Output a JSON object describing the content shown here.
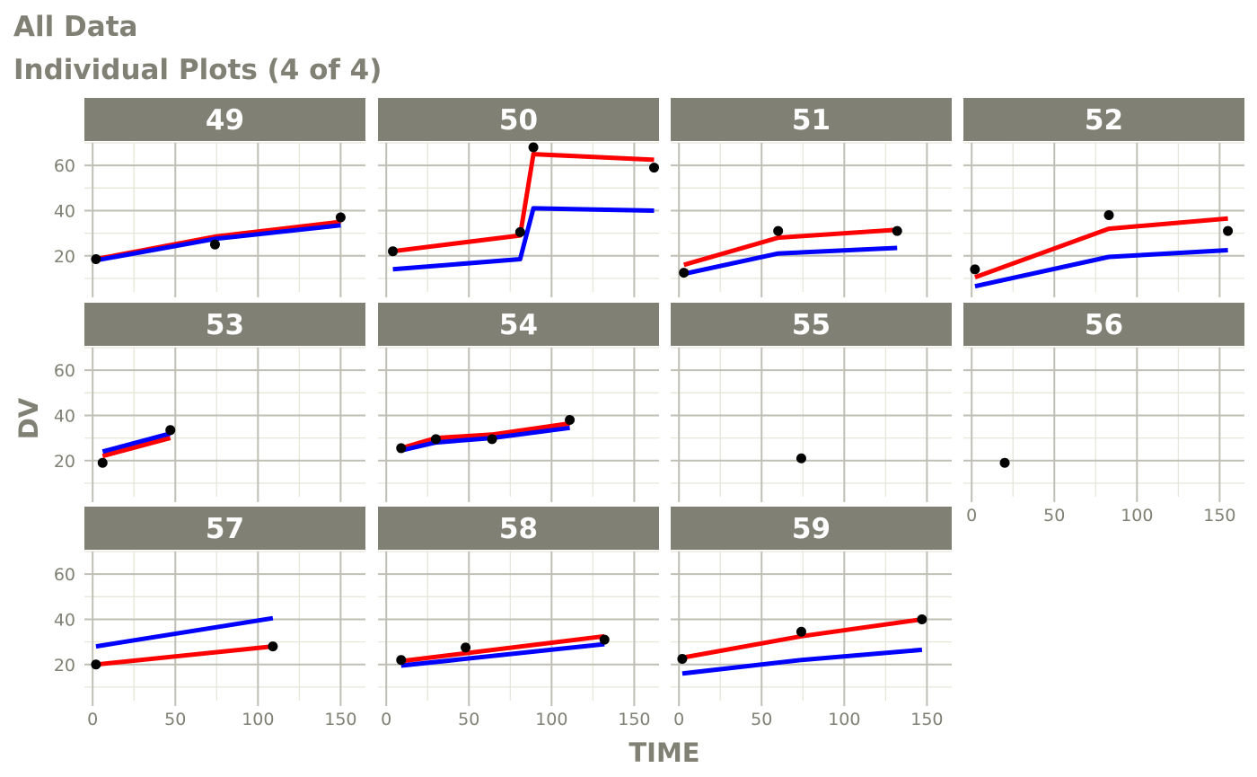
{
  "titles": {
    "line1": "All Data",
    "line2": "Individual Plots (4 of 4)"
  },
  "colors": {
    "strip_bg": "#808075",
    "grid_major": "#bfbfb5",
    "grid_minor": "#e6e6d9",
    "observed": "#000000",
    "ipred": "#ff0000",
    "pred": "#0000ff",
    "title": "#808075"
  },
  "chart_data": {
    "type": "line",
    "xlabel": "TIME",
    "ylabel": "DV",
    "xlim": [
      -5,
      165
    ],
    "ylim": [
      4,
      70
    ],
    "x_ticks": [
      0,
      50,
      100,
      150
    ],
    "y_ticks": [
      20,
      40,
      60
    ],
    "grid": true,
    "panels": [
      {
        "id": "49",
        "observed": {
          "x": [
            2,
            74,
            150
          ],
          "y": [
            18.5,
            25,
            37
          ]
        },
        "series": [
          {
            "color": "#ff0000",
            "x": [
              2,
              74,
              150
            ],
            "y": [
              18.5,
              28.5,
              35
            ]
          },
          {
            "color": "#0000ff",
            "x": [
              2,
              74,
              150
            ],
            "y": [
              18,
              27.5,
              33.5
            ]
          }
        ]
      },
      {
        "id": "50",
        "observed": {
          "x": [
            4,
            81,
            89,
            162
          ],
          "y": [
            22,
            30.5,
            68,
            59
          ]
        },
        "series": [
          {
            "color": "#ff0000",
            "x": [
              4,
              81,
              89,
              162
            ],
            "y": [
              22,
              29,
              65,
              62.5
            ]
          },
          {
            "color": "#0000ff",
            "x": [
              4,
              81,
              89,
              162
            ],
            "y": [
              14,
              18.5,
              41,
              40
            ]
          }
        ]
      },
      {
        "id": "51",
        "observed": {
          "x": [
            3,
            60,
            132
          ],
          "y": [
            12.5,
            31,
            31
          ]
        },
        "series": [
          {
            "color": "#ff0000",
            "x": [
              3,
              60,
              132
            ],
            "y": [
              16,
              28,
              31.5
            ]
          },
          {
            "color": "#0000ff",
            "x": [
              3,
              60,
              132
            ],
            "y": [
              12,
              21,
              23.5
            ]
          }
        ]
      },
      {
        "id": "52",
        "observed": {
          "x": [
            2,
            83,
            155
          ],
          "y": [
            14,
            38,
            31
          ]
        },
        "series": [
          {
            "color": "#ff0000",
            "x": [
              2,
              83,
              155
            ],
            "y": [
              10.5,
              32,
              36.5
            ]
          },
          {
            "color": "#0000ff",
            "x": [
              2,
              83,
              155
            ],
            "y": [
              6.5,
              19.5,
              22.5
            ]
          }
        ]
      },
      {
        "id": "53",
        "observed": {
          "x": [
            6,
            47
          ],
          "y": [
            19,
            33.5
          ]
        },
        "series": [
          {
            "color": "#ff0000",
            "x": [
              6,
              47
            ],
            "y": [
              22,
              30
            ]
          },
          {
            "color": "#0000ff",
            "x": [
              6,
              47
            ],
            "y": [
              24,
              32
            ]
          }
        ]
      },
      {
        "id": "54",
        "observed": {
          "x": [
            9,
            30,
            64,
            111
          ],
          "y": [
            25.5,
            29.5,
            29.5,
            38
          ]
        },
        "series": [
          {
            "color": "#ff0000",
            "x": [
              9,
              30,
              64,
              111
            ],
            "y": [
              25.5,
              30,
              31.5,
              36.5
            ]
          },
          {
            "color": "#0000ff",
            "x": [
              9,
              30,
              64,
              111
            ],
            "y": [
              24.5,
              28,
              30,
              34.5
            ]
          }
        ]
      },
      {
        "id": "55",
        "observed": {
          "x": [
            74
          ],
          "y": [
            21
          ]
        },
        "series": []
      },
      {
        "id": "56",
        "observed": {
          "x": [
            20
          ],
          "y": [
            19
          ]
        },
        "series": []
      },
      {
        "id": "57",
        "observed": {
          "x": [
            2,
            109
          ],
          "y": [
            20,
            28
          ]
        },
        "series": [
          {
            "color": "#ff0000",
            "x": [
              2,
              109
            ],
            "y": [
              20,
              28
            ]
          },
          {
            "color": "#0000ff",
            "x": [
              2,
              109
            ],
            "y": [
              28,
              40.5
            ]
          }
        ]
      },
      {
        "id": "58",
        "observed": {
          "x": [
            9,
            48,
            132
          ],
          "y": [
            22,
            27.5,
            31
          ]
        },
        "series": [
          {
            "color": "#ff0000",
            "x": [
              9,
              132
            ],
            "y": [
              21.5,
              32.5
            ]
          },
          {
            "color": "#0000ff",
            "x": [
              9,
              132
            ],
            "y": [
              19.5,
              29
            ]
          }
        ]
      },
      {
        "id": "59",
        "observed": {
          "x": [
            2,
            74,
            147
          ],
          "y": [
            22.5,
            34.5,
            40
          ]
        },
        "series": [
          {
            "color": "#ff0000",
            "x": [
              2,
              74,
              147
            ],
            "y": [
              23,
              32.5,
              40
            ]
          },
          {
            "color": "#0000ff",
            "x": [
              2,
              74,
              147
            ],
            "y": [
              16,
              22,
              26.5
            ]
          }
        ]
      }
    ]
  }
}
